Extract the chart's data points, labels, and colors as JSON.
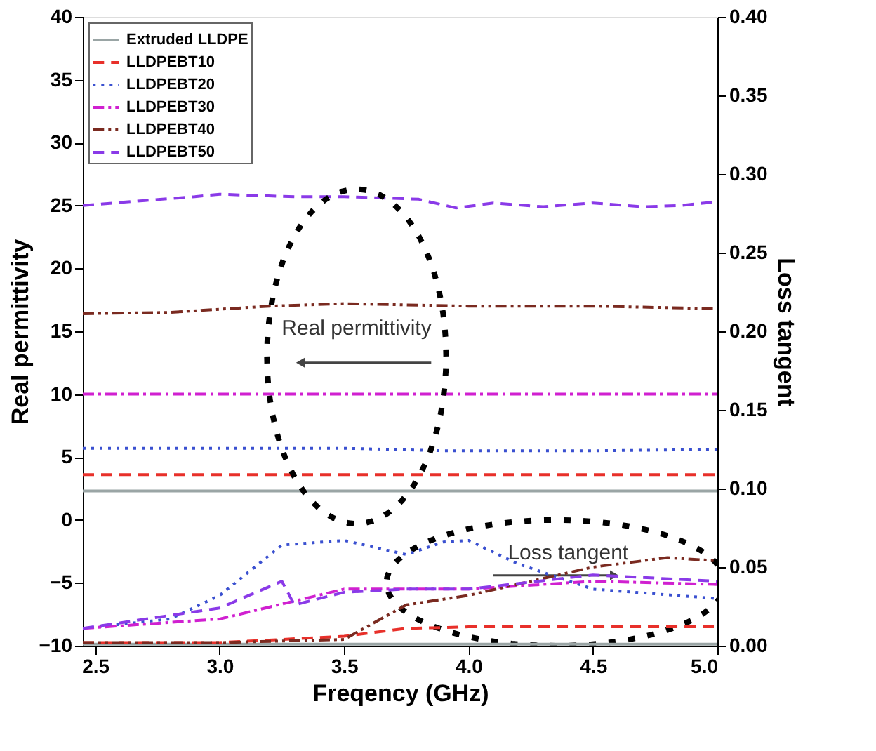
{
  "chart_data": {
    "type": "line",
    "xlabel": "Freqency (GHz)",
    "ylabel": "Real permittivity",
    "y2label": "Loss tangent",
    "xlim": [
      2.45,
      5.0
    ],
    "xticks": [
      2.5,
      {
        "value": 3,
        "label": "3.0"
      },
      3.5,
      {
        "value": 4,
        "label": "4.0"
      },
      4.5,
      {
        "value": 5,
        "label": "5.0"
      }
    ],
    "ylim": [
      -10,
      40
    ],
    "yticks": [
      -10,
      -5,
      0,
      5,
      10,
      15,
      20,
      25,
      30,
      35,
      40
    ],
    "y2lim": [
      0,
      0.4
    ],
    "y2ticks": [
      {
        "value": 0,
        "label": "0.00"
      },
      {
        "value": 0.05,
        "label": "0.05"
      },
      {
        "value": 0.1,
        "label": "0.10"
      },
      {
        "value": 0.15,
        "label": "0.15"
      },
      {
        "value": 0.2,
        "label": "0.20"
      },
      {
        "value": 0.25,
        "label": "0.25"
      },
      {
        "value": 0.3,
        "label": "0.30"
      },
      {
        "value": 0.35,
        "label": "0.35"
      },
      {
        "value": 0.4,
        "label": "0.40"
      }
    ],
    "grid": false,
    "legend": "top left",
    "marker": "none",
    "annotations": [
      "Real permittivity",
      "Loss tangent"
    ],
    "series": [
      {
        "name": "Extruded LLDPE",
        "color": "#9aa5a5",
        "line_style": "solid",
        "x": [
          2.45,
          3.0,
          3.5,
          4.0,
          4.5,
          5.0
        ],
        "values": [
          2.3,
          2.3,
          2.3,
          2.3,
          2.3,
          2.3
        ]
      },
      {
        "name": "LLDPEBT10",
        "color": "#e8302a",
        "line_style": "dashed",
        "x": [
          2.45,
          3.0,
          3.5,
          4.0,
          4.5,
          5.0
        ],
        "values": [
          3.6,
          3.6,
          3.6,
          3.6,
          3.6,
          3.6
        ]
      },
      {
        "name": "LLDPEBT20",
        "color": "#3a50d0",
        "line_style": "dotted",
        "x": [
          2.45,
          3.0,
          3.5,
          3.9,
          4.5,
          5.0
        ],
        "values": [
          5.7,
          5.7,
          5.7,
          5.5,
          5.5,
          5.6
        ]
      },
      {
        "name": "LLDPEBT30",
        "color": "#d020d0",
        "line_style": "dashdot",
        "x": [
          2.45,
          3.0,
          3.5,
          4.0,
          4.5,
          5.0
        ],
        "values": [
          10.0,
          10.0,
          10.0,
          10.0,
          10.0,
          10.0
        ]
      },
      {
        "name": "LLDPEBT40",
        "color": "#7a2a20",
        "line_style": "dashdotdot",
        "x": [
          2.45,
          2.8,
          3.2,
          3.5,
          4.0,
          4.5,
          5.0
        ],
        "values": [
          16.4,
          16.5,
          17.0,
          17.2,
          17.0,
          17.0,
          16.8
        ]
      },
      {
        "name": "LLDPEBT50",
        "color": "#8a3ae8",
        "line_style": "dashed",
        "x": [
          2.45,
          2.7,
          2.9,
          3.0,
          3.3,
          3.5,
          3.8,
          3.95,
          4.1,
          4.3,
          4.5,
          4.7,
          4.85,
          5.0
        ],
        "values": [
          25.0,
          25.4,
          25.7,
          25.9,
          25.7,
          25.7,
          25.5,
          24.8,
          25.2,
          24.9,
          25.2,
          24.9,
          25.0,
          25.3
        ]
      },
      {
        "color": "#9aa5a5",
        "line_style": "solid",
        "axis": "y2",
        "x": [
          2.45,
          3.0,
          3.5,
          4.0,
          4.5,
          5.0
        ],
        "values": [
          0.001,
          0.001,
          0.001,
          0.001,
          0.001,
          0.001
        ]
      },
      {
        "color": "#e8302a",
        "line_style": "dashed",
        "axis": "y2",
        "x": [
          2.45,
          3.0,
          3.5,
          3.75,
          4.0,
          4.5,
          5.0
        ],
        "values": [
          0.002,
          0.002,
          0.006,
          0.011,
          0.012,
          0.012,
          0.012
        ]
      },
      {
        "color": "#3a50d0",
        "line_style": "dotted",
        "axis": "y2",
        "x": [
          2.45,
          2.8,
          3.0,
          3.25,
          3.5,
          3.75,
          3.9,
          4.0,
          4.2,
          4.5,
          5.0
        ],
        "values": [
          0.011,
          0.017,
          0.032,
          0.064,
          0.067,
          0.058,
          0.066,
          0.067,
          0.052,
          0.036,
          0.03
        ]
      },
      {
        "color": "#d020d0",
        "line_style": "dashdot",
        "axis": "y2",
        "x": [
          2.45,
          3.0,
          3.5,
          4.0,
          4.5,
          5.0
        ],
        "values": [
          0.011,
          0.017,
          0.036,
          0.036,
          0.041,
          0.039
        ]
      },
      {
        "color": "#7a2a20",
        "line_style": "dashdotdot",
        "axis": "y2",
        "x": [
          2.45,
          3.0,
          3.5,
          3.75,
          4.0,
          4.5,
          4.8,
          5.0
        ],
        "values": [
          0.002,
          0.002,
          0.004,
          0.026,
          0.032,
          0.05,
          0.056,
          0.054
        ]
      },
      {
        "color": "#8a3ae8",
        "line_style": "dashed",
        "axis": "y2",
        "x": [
          2.45,
          3.0,
          3.25,
          3.3,
          3.5,
          3.75,
          4.0,
          4.5,
          5.0
        ],
        "values": [
          0.011,
          0.024,
          0.041,
          0.026,
          0.034,
          0.036,
          0.036,
          0.045,
          0.041
        ]
      }
    ]
  }
}
